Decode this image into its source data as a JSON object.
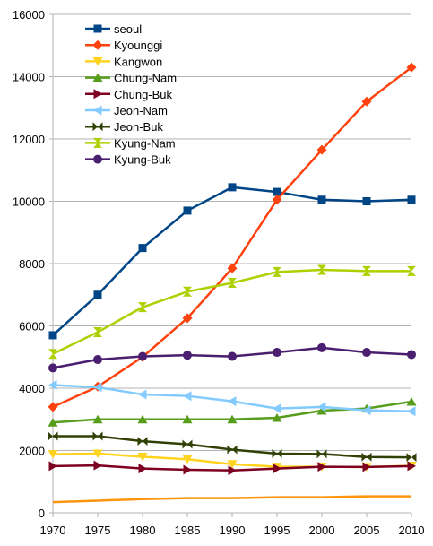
{
  "chart_data": {
    "type": "line",
    "title": "",
    "xlabel": "",
    "ylabel": "",
    "x": [
      1970,
      1975,
      1980,
      1985,
      1990,
      1995,
      2000,
      2005,
      2010
    ],
    "xlim": [
      1970,
      2010
    ],
    "ylim": [
      0,
      16000
    ],
    "yticks": [
      0,
      2000,
      4000,
      6000,
      8000,
      10000,
      12000,
      14000,
      16000
    ],
    "grid": "horizontal",
    "legend_position": "top-left",
    "series": [
      {
        "name": "seoul",
        "color": "#004586",
        "marker": "square",
        "values": [
          5700,
          7000,
          8500,
          9700,
          10450,
          10300,
          10050,
          10000,
          10050
        ]
      },
      {
        "name": "Kyounggi",
        "color": "#ff420e",
        "marker": "diamond",
        "values": [
          3400,
          4050,
          5000,
          6250,
          7850,
          10050,
          11650,
          13200,
          14300
        ]
      },
      {
        "name": "Kangwon",
        "color": "#ffd320",
        "marker": "triangle-down",
        "values": [
          1880,
          1900,
          1800,
          1720,
          1560,
          1480,
          1480,
          1470,
          1510
        ]
      },
      {
        "name": "Chung-Nam",
        "color": "#579d1c",
        "marker": "triangle-up",
        "values": [
          2900,
          3000,
          3000,
          3000,
          3000,
          3050,
          3280,
          3350,
          3570
        ]
      },
      {
        "name": "Chung-Buk",
        "color": "#7e0021",
        "marker": "triangle-right",
        "values": [
          1500,
          1520,
          1420,
          1380,
          1360,
          1420,
          1480,
          1470,
          1500
        ]
      },
      {
        "name": "Jeon-Nam",
        "color": "#83caff",
        "marker": "triangle-left",
        "values": [
          4100,
          4030,
          3800,
          3750,
          3580,
          3350,
          3400,
          3290,
          3260
        ]
      },
      {
        "name": "Jeon-Buk",
        "color": "#314004",
        "marker": "bowtie",
        "values": [
          2460,
          2460,
          2300,
          2200,
          2030,
          1900,
          1890,
          1790,
          1780
        ]
      },
      {
        "name": "Kyung-Nam",
        "color": "#aecf00",
        "marker": "hourglass",
        "values": [
          5100,
          5800,
          6600,
          7100,
          7380,
          7730,
          7800,
          7760,
          7760
        ]
      },
      {
        "name": "Kyung-Buk",
        "color": "#4b1f6f",
        "marker": "circle",
        "values": [
          4650,
          4920,
          5020,
          5060,
          5020,
          5150,
          5300,
          5150,
          5080
        ]
      },
      {
        "name": "",
        "color": "#ff950e",
        "marker": "none",
        "values": [
          340,
          390,
          440,
          470,
          470,
          500,
          500,
          530,
          530
        ]
      }
    ]
  }
}
